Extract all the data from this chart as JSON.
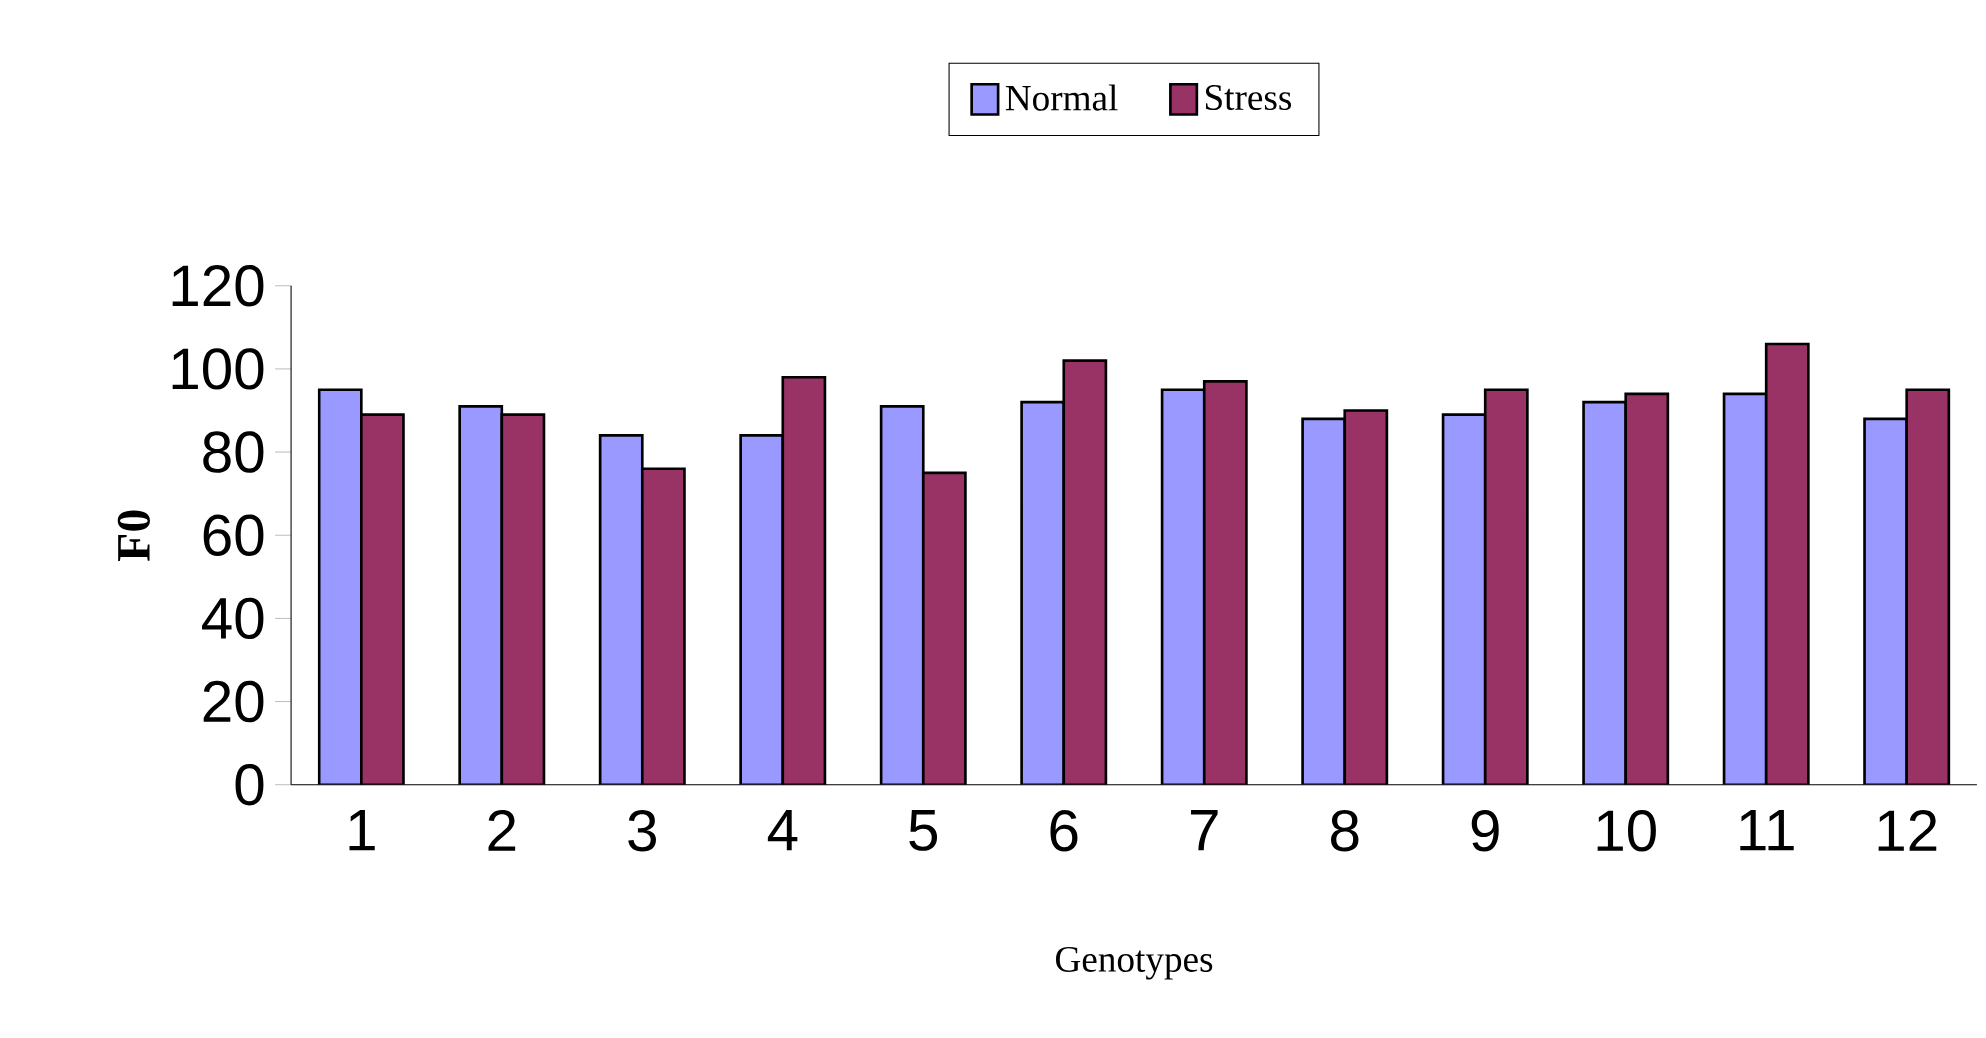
{
  "chart_data": {
    "type": "bar",
    "xlabel": "Genotypes",
    "ylabel": "F0",
    "categories": [
      "1",
      "2",
      "3",
      "4",
      "5",
      "6",
      "7",
      "8",
      "9",
      "10",
      "11",
      "12"
    ],
    "series": [
      {
        "name": "Normal",
        "color": "#9999ff",
        "values": [
          95,
          91,
          84,
          84,
          91,
          92,
          95,
          88,
          89,
          92,
          94,
          88
        ]
      },
      {
        "name": "Stress",
        "color": "#993366",
        "values": [
          89,
          89,
          76,
          98,
          75,
          102,
          97,
          90,
          95,
          94,
          106,
          95
        ]
      }
    ],
    "ylim": [
      0,
      120
    ],
    "yticks": [
      0,
      20,
      40,
      60,
      80,
      100,
      120
    ],
    "legend": "top",
    "grid": false
  }
}
